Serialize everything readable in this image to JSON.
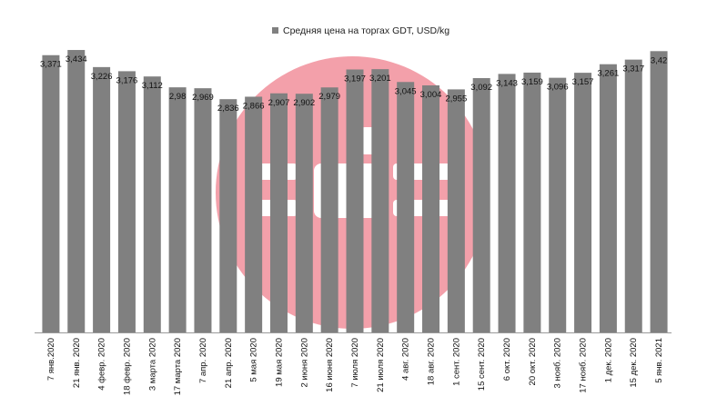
{
  "chart_data": {
    "type": "bar",
    "title": "",
    "xlabel": "",
    "ylabel": "",
    "ylim": [
      0,
      3.6
    ],
    "grid": false,
    "legend_position": "top-center",
    "series": [
      {
        "name": "Средняя цена на торгах GDT,  USD/kg",
        "color": "#808080",
        "values": [
          3.371,
          3.434,
          3.226,
          3.176,
          3.112,
          2.98,
          2.969,
          2.836,
          2.866,
          2.907,
          2.902,
          2.979,
          3.197,
          3.201,
          3.045,
          3.004,
          2.955,
          3.092,
          3.143,
          3.159,
          3.096,
          3.157,
          3.261,
          3.317,
          3.42
        ],
        "value_labels": [
          "3,371",
          "3,434",
          "3,226",
          "3,176",
          "3,112",
          "2,98",
          "2,969",
          "2,836",
          "2,866",
          "2,907",
          "2,902",
          "2,979",
          "3,197",
          "3,201",
          "3,045",
          "3,004",
          "2,955",
          "3,092",
          "3,143",
          "3,159",
          "3,096",
          "3,157",
          "3,261",
          "3,317",
          "3,42"
        ]
      }
    ],
    "categories": [
      "7 янв.2020",
      "21 янв. 2020",
      "4 февр. 2020",
      "18 февр. 2020",
      "3 марта 2020",
      "17 марта 2020",
      "7 апр. 2020",
      "21 апр. 2020",
      "5 мая 2020",
      "19 мая 2020",
      "2 июня 2020",
      "16 июня 2020",
      "7 июля 2020",
      "21 июля 2020",
      "4 авг. 2020",
      "18 авг. 2020",
      "1 сент. 2020",
      "15 сент. 2020",
      "6 окт. 2020",
      "20 окт. 2020",
      "3 нояб. 2020",
      "17 нояб. 2020",
      "1 дек. 2020",
      "15 дек. 2020",
      "5 янв. 2021"
    ]
  },
  "watermark": {
    "icon": "pink-circle-logo-icon",
    "color": "#f3a0aa"
  }
}
